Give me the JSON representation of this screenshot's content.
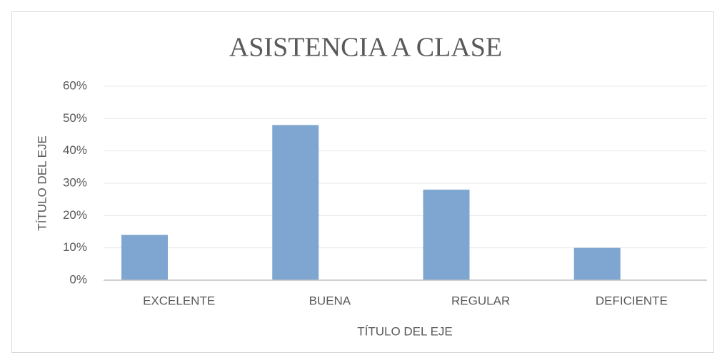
{
  "chart_data": {
    "type": "bar",
    "title": "ASISTENCIA A CLASE",
    "categories": [
      "EXCELENTE",
      "BUENA",
      "REGULAR",
      "DEFICIENTE"
    ],
    "values": [
      14,
      48,
      28,
      10
    ],
    "color": "#7fa6d1",
    "ylim": [
      0,
      60
    ],
    "yticks": [
      {
        "value": 0,
        "label": "0%"
      },
      {
        "value": 10,
        "label": "10%"
      },
      {
        "value": 20,
        "label": "20%"
      },
      {
        "value": 30,
        "label": "30%"
      },
      {
        "value": 40,
        "label": "40%"
      },
      {
        "value": 50,
        "label": "50%"
      },
      {
        "value": 60,
        "label": "60%"
      }
    ],
    "x_label": "TÍTULO DEL EJE",
    "y_label": "TÍTULO DEL EJE",
    "grid": true
  }
}
